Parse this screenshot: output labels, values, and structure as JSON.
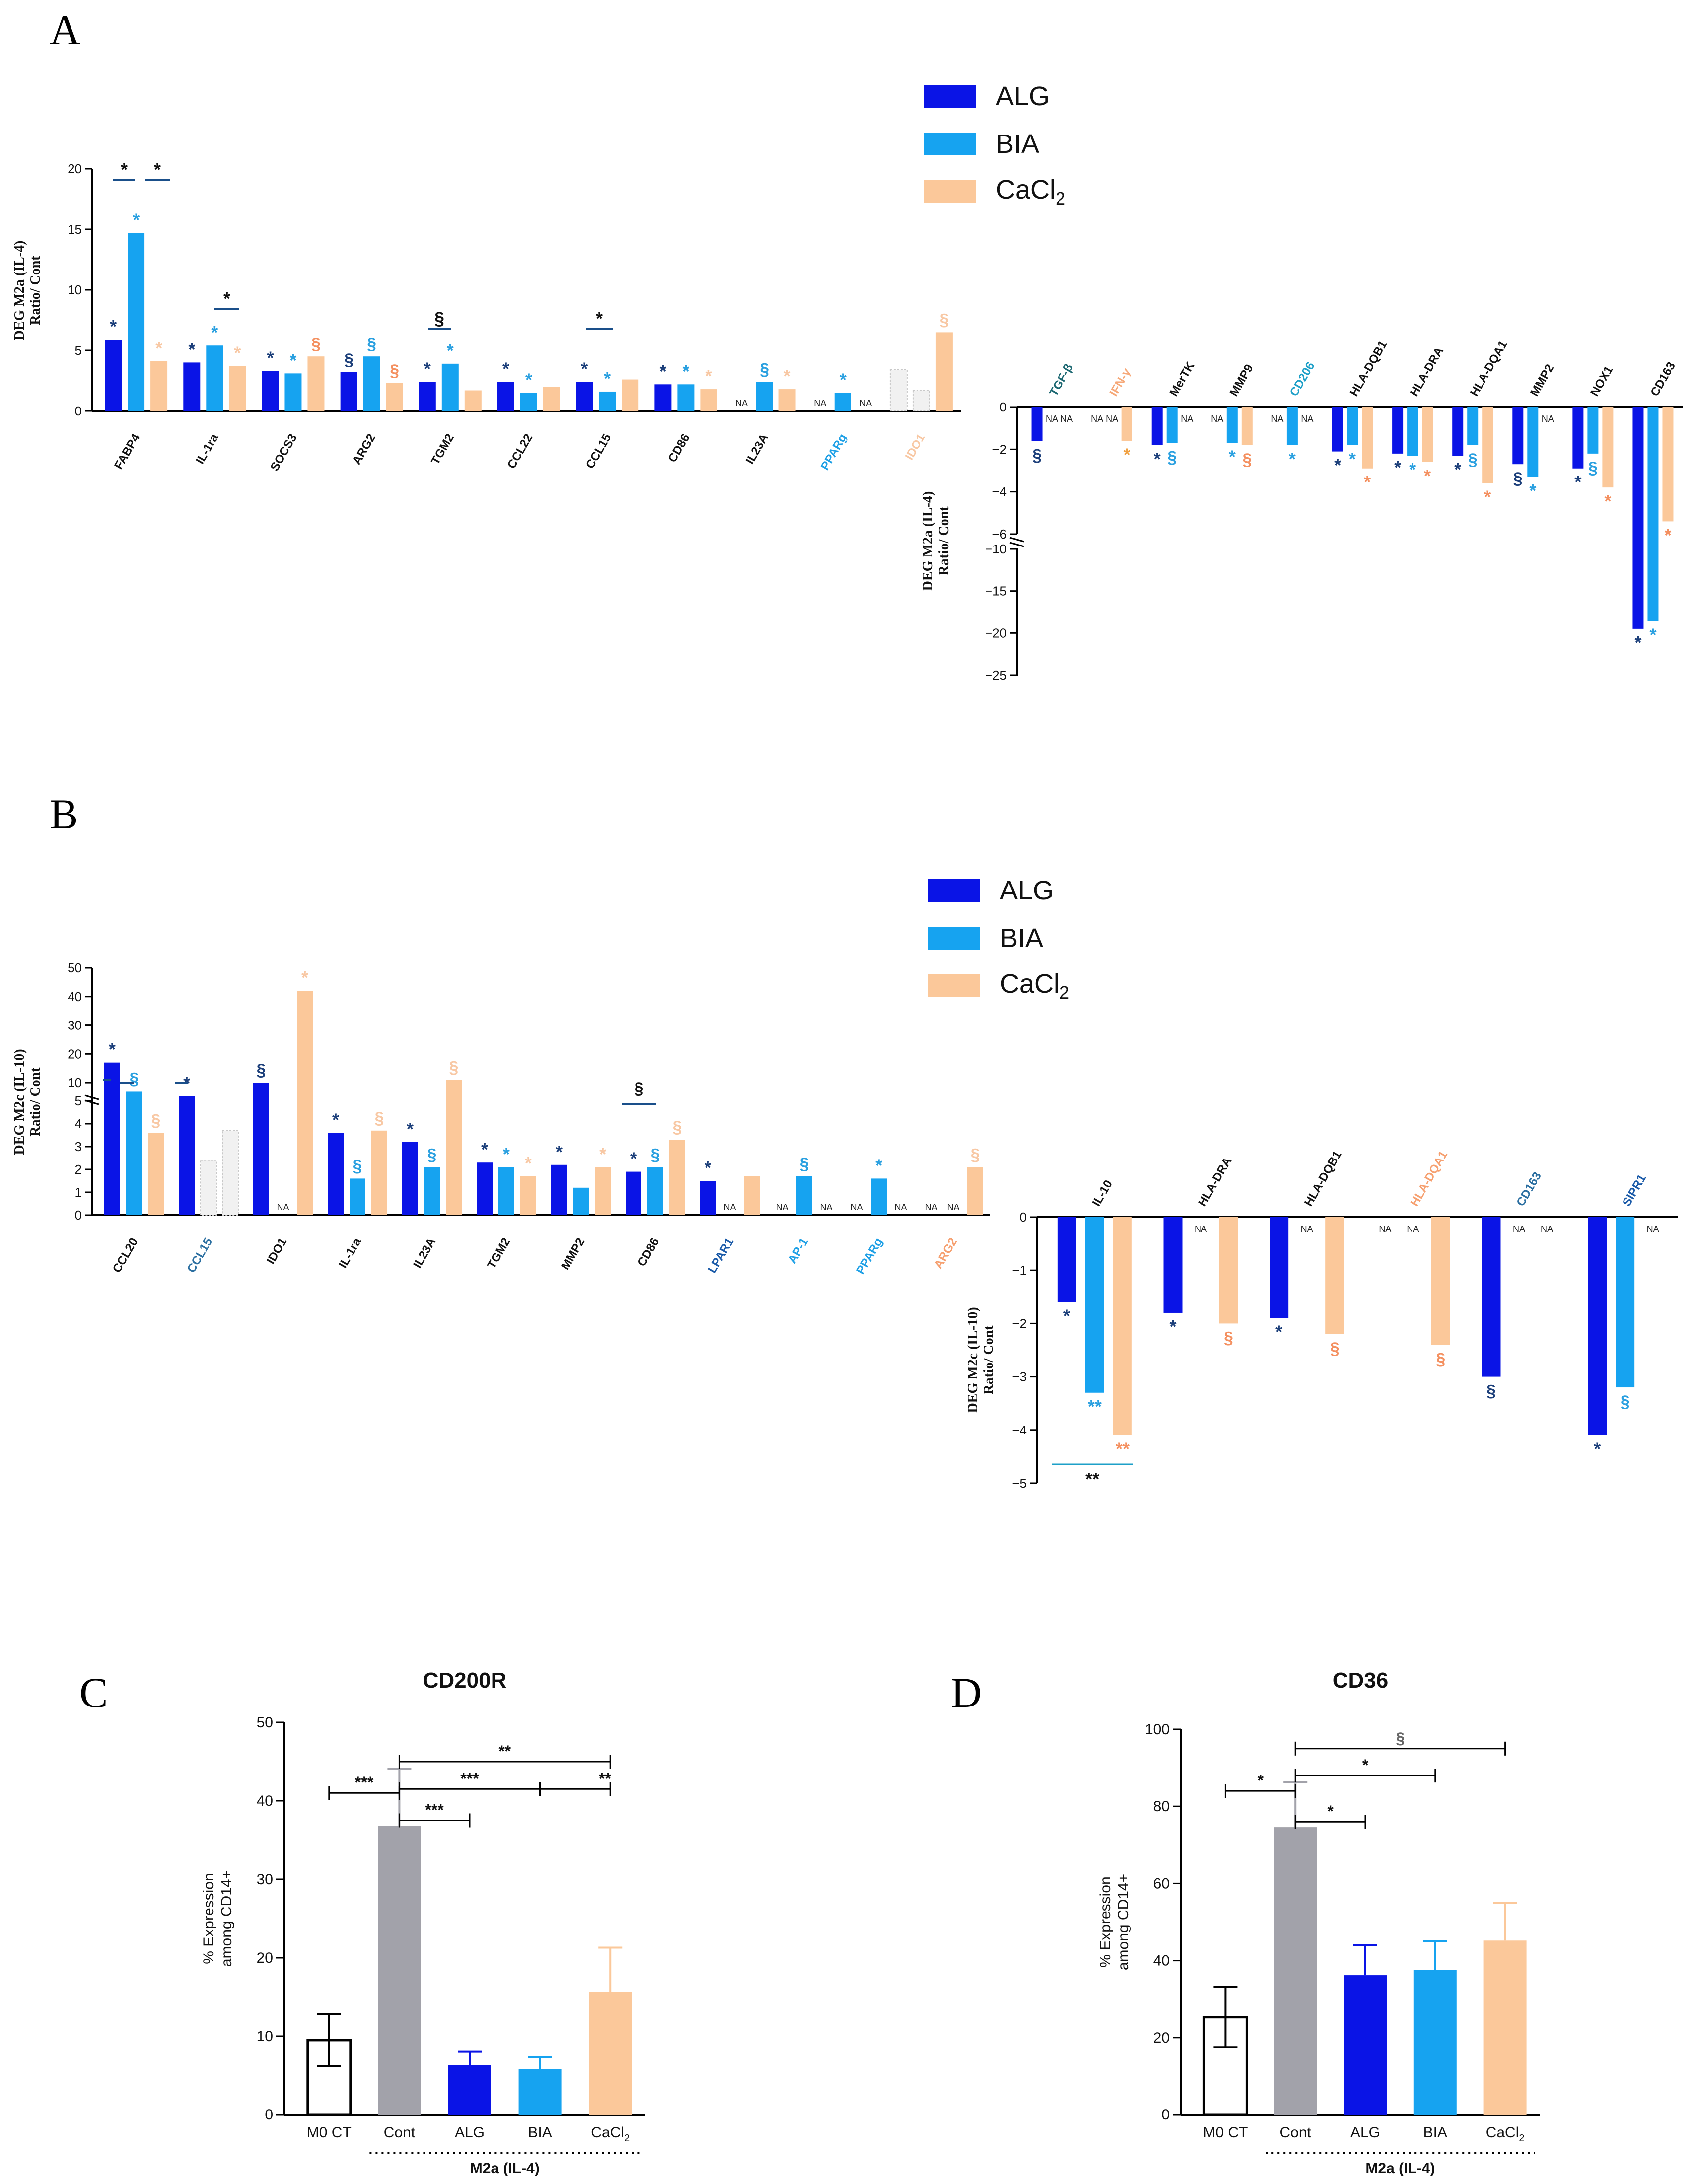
{
  "panels": {
    "A": "A",
    "B": "B",
    "C": "C",
    "D": "D"
  },
  "colors": {
    "ALG": "#0a14e6",
    "BIA": "#16a3f0",
    "CaCl2": "#fbc89a",
    "Cont": "#a2a2aa",
    "M0": "#ffffff"
  },
  "legend": {
    "A": [
      {
        "name": "ALG",
        "color": "#0a14e6"
      },
      {
        "name": "BIA",
        "color": "#16a3f0"
      },
      {
        "name": "CaCl",
        "sub": "2",
        "color": "#fbc89a"
      }
    ],
    "B": [
      {
        "name": "ALG",
        "color": "#0a14e6"
      },
      {
        "name": "BIA",
        "color": "#16a3f0"
      },
      {
        "name": "CaCl",
        "sub": "2",
        "color": "#fbc89a"
      }
    ]
  },
  "chart_data": [
    {
      "id": "A_up",
      "type": "bar",
      "ylabel": "DEG M2a (IL-4)",
      "ylabel2": "Ratio/ Cont",
      "ylim": [
        0,
        20
      ],
      "yticks": [
        0,
        5,
        10,
        15,
        20
      ],
      "categories": [
        "FABP4",
        "IL-1ra",
        "SOCS3",
        "ARG2",
        "TGM2",
        "CCL22",
        "CCL15",
        "CD86",
        "IL23A",
        "PPARg",
        "IDO1"
      ],
      "series": [
        {
          "name": "ALG",
          "values": [
            5.9,
            4.0,
            3.3,
            3.2,
            2.4,
            2.4,
            2.4,
            2.2,
            null,
            null,
            3.4
          ]
        },
        {
          "name": "BIA",
          "values": [
            14.7,
            5.4,
            3.1,
            4.5,
            3.9,
            1.5,
            1.6,
            2.2,
            2.4,
            1.5,
            1.7
          ]
        },
        {
          "name": "CaCl2",
          "values": [
            4.1,
            3.7,
            4.5,
            2.3,
            1.7,
            2.0,
            2.6,
            1.8,
            1.8,
            null,
            6.5
          ]
        }
      ]
    },
    {
      "id": "A_down",
      "type": "bar",
      "ylabel": "DEG M2a (IL-4)",
      "ylabel2": "Ratio/ Cont",
      "ylim": [
        -25,
        0
      ],
      "yticks": [
        0,
        -2,
        -4,
        -6,
        -10,
        -15,
        -20,
        -25
      ],
      "categories": [
        "TGF-β",
        "IFN-γ",
        "MerTK",
        "MMP9",
        "CD206",
        "HLA-DQB1",
        "HLA-DRA",
        "HLA-DQA1",
        "MMP2",
        "NOX1",
        "CD163"
      ],
      "series": [
        {
          "name": "ALG",
          "values": [
            -1.6,
            null,
            -1.8,
            null,
            null,
            -2.1,
            -2.2,
            -2.3,
            -2.7,
            -2.9,
            -19.5
          ]
        },
        {
          "name": "BIA",
          "values": [
            null,
            null,
            -1.7,
            -1.7,
            -1.8,
            -1.8,
            -2.3,
            -1.8,
            -3.3,
            -2.2,
            -18.6
          ]
        },
        {
          "name": "CaCl2",
          "values": [
            null,
            -1.6,
            null,
            -1.8,
            null,
            -2.9,
            -2.6,
            -3.6,
            null,
            -3.8,
            -5.4
          ]
        }
      ]
    },
    {
      "id": "B_up",
      "type": "bar",
      "ylabel": "DEG M2c (IL-10)",
      "ylabel2": "Ratio/ Cont",
      "ylim": [
        0,
        50
      ],
      "yticks": [
        0,
        1,
        2,
        3,
        4,
        5,
        10,
        20,
        30,
        40,
        50
      ],
      "categories": [
        "CCL20",
        "CCL15",
        "IDO1",
        "IL-1ra",
        "IL23A",
        "TGM2",
        "MMP2",
        "CD86",
        "LPAR1",
        "AP-1",
        "PPARg",
        "ARG2"
      ],
      "series": [
        {
          "name": "ALG",
          "values": [
            17,
            5.3,
            10,
            3.6,
            3.2,
            2.3,
            2.2,
            1.9,
            1.5,
            null,
            null,
            null
          ]
        },
        {
          "name": "BIA",
          "values": [
            7,
            2.4,
            null,
            1.6,
            2.1,
            2.1,
            1.2,
            2.1,
            null,
            1.7,
            1.6,
            null
          ]
        },
        {
          "name": "CaCl2",
          "values": [
            3.6,
            3.7,
            42,
            3.7,
            11,
            1.7,
            2.1,
            3.3,
            1.7,
            null,
            null,
            2.1
          ]
        }
      ]
    },
    {
      "id": "B_down",
      "type": "bar",
      "ylabel": "DEG M2c (IL-10)",
      "ylabel2": "Ratio/ Cont",
      "ylim": [
        -5,
        0
      ],
      "yticks": [
        0,
        -1,
        -2,
        -3,
        -4,
        -5
      ],
      "categories": [
        "IL-10",
        "HLA-DRA",
        "HLA-DQB1",
        "HLA-DQA1",
        "CD163",
        "SIPR1"
      ],
      "series": [
        {
          "name": "ALG",
          "values": [
            -1.6,
            -1.8,
            -1.9,
            null,
            -3.0,
            -4.1
          ]
        },
        {
          "name": "BIA",
          "values": [
            -3.3,
            null,
            null,
            null,
            null,
            -3.2
          ]
        },
        {
          "name": "CaCl2",
          "values": [
            -4.1,
            -2.0,
            -2.2,
            -2.4,
            null,
            null
          ]
        }
      ]
    },
    {
      "id": "C",
      "type": "bar",
      "title": "CD200R",
      "ylabel": "% Expression",
      "ylabel2": "among CD14+",
      "ylim": [
        0,
        50
      ],
      "yticks": [
        0,
        10,
        20,
        30,
        40,
        50
      ],
      "categories": [
        "M0 CT",
        "Cont",
        "ALG",
        "BIA",
        "CaCl2"
      ],
      "values": [
        9.5,
        36.8,
        6.3,
        5.8,
        15.6
      ],
      "errors": [
        3.3,
        7.3,
        1.7,
        1.5,
        5.7
      ],
      "group_label": "M2a (IL-4)"
    },
    {
      "id": "D",
      "type": "bar",
      "title": "CD36",
      "ylabel": "% Expression",
      "ylabel2": "among CD14+",
      "ylim": [
        0,
        100
      ],
      "yticks": [
        0,
        20,
        40,
        60,
        80,
        100
      ],
      "categories": [
        "M0 CT",
        "Cont",
        "ALG",
        "BIA",
        "CaCl2"
      ],
      "values": [
        25.3,
        74.6,
        36.2,
        37.5,
        45.2
      ],
      "errors": [
        7.8,
        11.7,
        7.8,
        7.6,
        9.8
      ],
      "group_label": "M2a (IL-4)"
    }
  ]
}
